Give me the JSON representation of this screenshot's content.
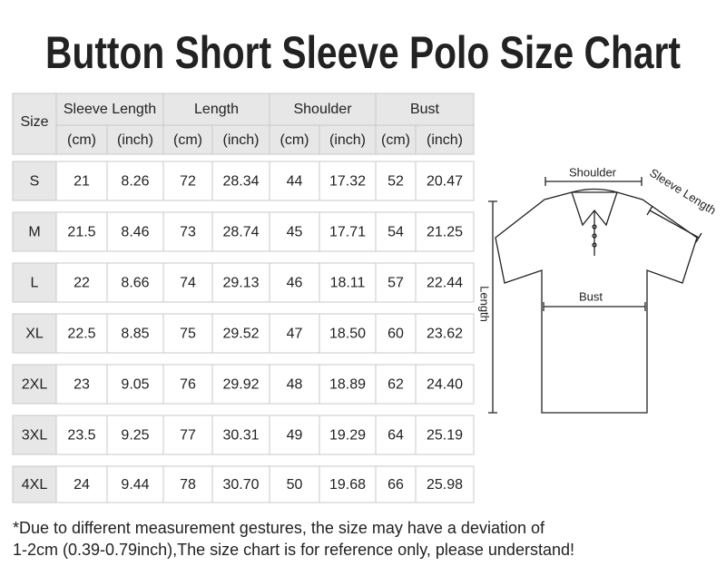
{
  "title": "Button Short Sleeve Polo Size Chart",
  "table": {
    "header": {
      "size": "Size",
      "groups": [
        "Sleeve Length",
        "Length",
        "Shoulder",
        "Bust"
      ],
      "units": [
        "(cm)",
        "(inch)",
        "(cm)",
        "(inch)",
        "(cm)",
        "(inch)",
        "(cm)",
        "(inch)"
      ]
    },
    "rows": [
      [
        "S",
        "21",
        "8.26",
        "72",
        "28.34",
        "44",
        "17.32",
        "52",
        "20.47"
      ],
      [
        "M",
        "21.5",
        "8.46",
        "73",
        "28.74",
        "45",
        "17.71",
        "54",
        "21.25"
      ],
      [
        "L",
        "22",
        "8.66",
        "74",
        "29.13",
        "46",
        "18.11",
        "57",
        "22.44"
      ],
      [
        "XL",
        "22.5",
        "8.85",
        "75",
        "29.52",
        "47",
        "18.50",
        "60",
        "23.62"
      ],
      [
        "2XL",
        "23",
        "9.05",
        "76",
        "29.92",
        "48",
        "18.89",
        "62",
        "24.40"
      ],
      [
        "3XL",
        "23.5",
        "9.25",
        "77",
        "30.31",
        "49",
        "19.29",
        "64",
        "25.19"
      ],
      [
        "4XL",
        "24",
        "9.44",
        "78",
        "30.70",
        "50",
        "19.68",
        "66",
        "25.98"
      ]
    ]
  },
  "diagram": {
    "shoulder": "Shoulder",
    "sleeve_length": "Sleeve Length",
    "length": "Length",
    "bust": "Bust"
  },
  "footnote": [
    "*Due to different measurement gestures, the size may have a deviation of",
    "1-2cm (0.39-0.79inch),The size chart is for reference only, please understand!"
  ]
}
